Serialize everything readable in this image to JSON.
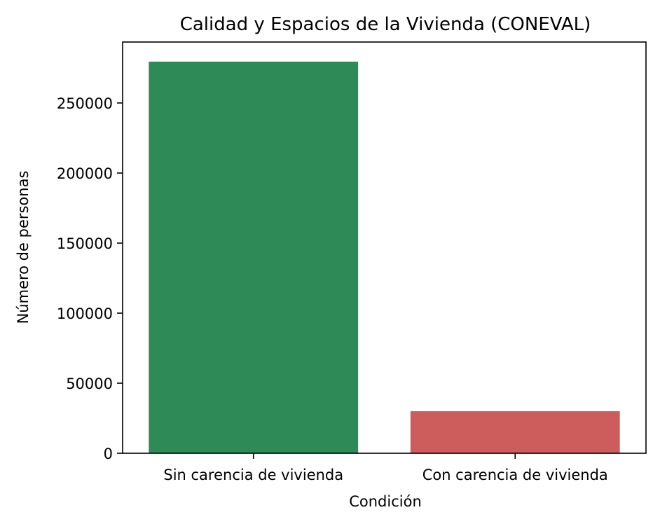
{
  "chart_data": {
    "type": "bar",
    "title": "Calidad y Espacios de la Vivienda (CONEVAL)",
    "xlabel": "Condición",
    "ylabel": "Número de personas",
    "categories": [
      "Sin carencia de vivienda",
      "Con carencia de vivienda"
    ],
    "values": [
      279500,
      30000
    ],
    "colors": [
      "#2e8b57",
      "#cd5c5c"
    ],
    "ylim": [
      0,
      293500
    ],
    "yticks": [
      0,
      50000,
      100000,
      150000,
      200000,
      250000
    ],
    "ytick_labels": [
      "0",
      "50000",
      "100000",
      "150000",
      "200000",
      "250000"
    ],
    "grid": false,
    "legend": "none"
  }
}
